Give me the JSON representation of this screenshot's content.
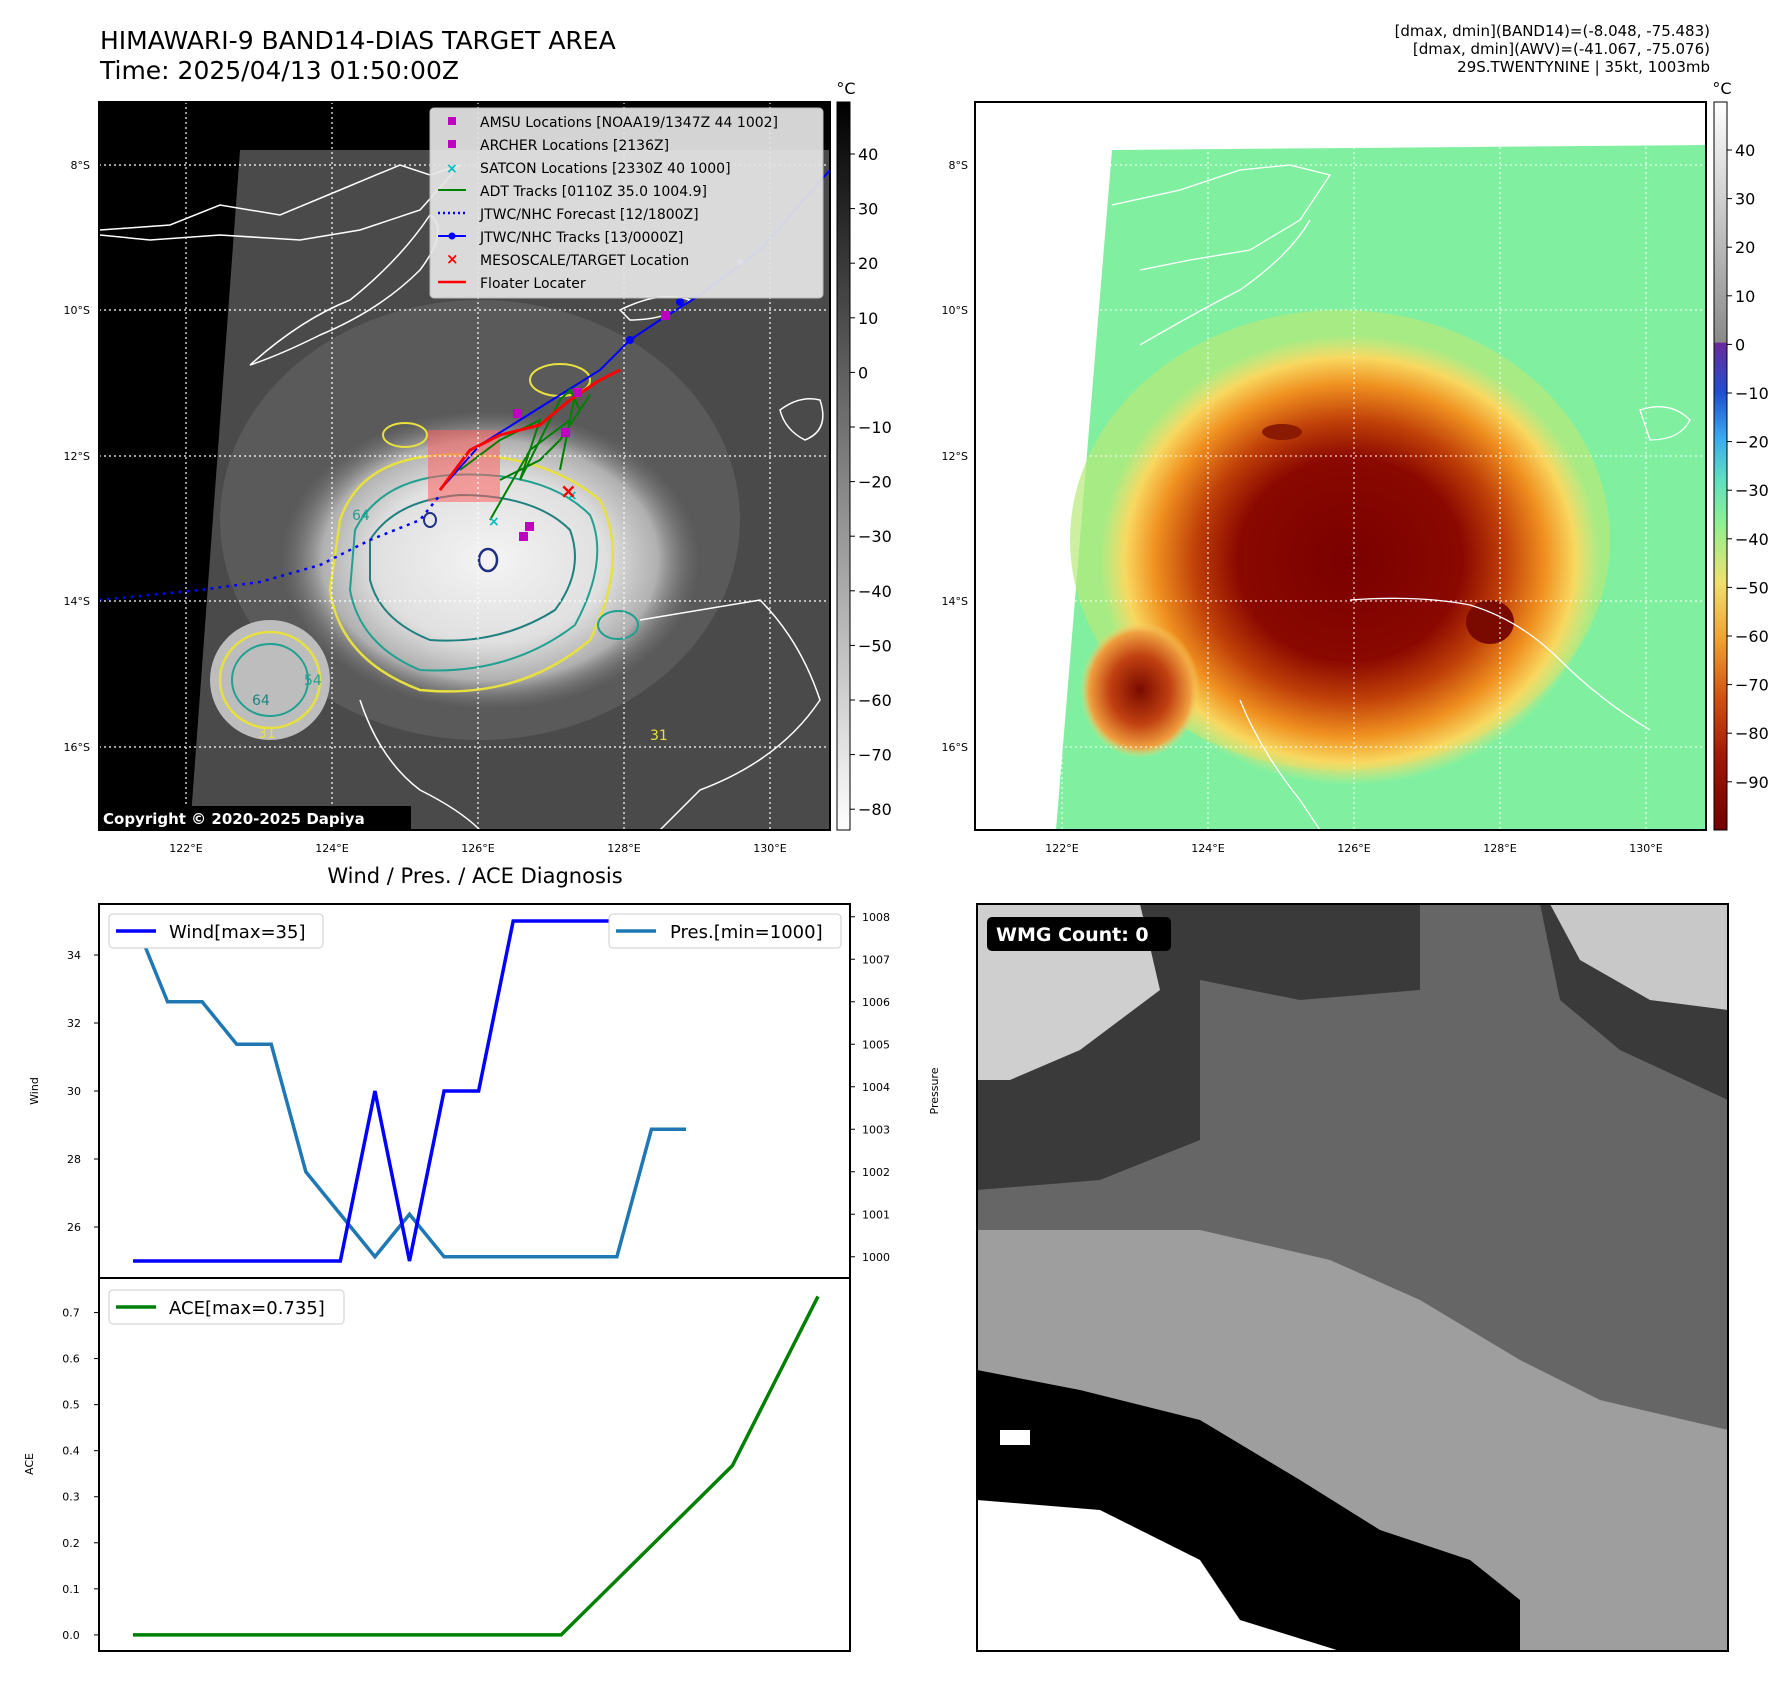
{
  "header": {
    "title_line1": "HIMAWARI-9 BAND14-DIAS TARGET AREA",
    "title_line2": "Time: 2025/04/13 01:50:00Z"
  },
  "info": {
    "line1": "[dmax, dmin](BAND14)=(-8.048, -75.483)",
    "line2": "[dmax, dmin](AWV)=(-41.067, -75.076)",
    "line3": "29S.TWENTYNINE | 35kt, 1003mb"
  },
  "map": {
    "lon_ticks": [
      "122°E",
      "124°E",
      "126°E",
      "128°E",
      "130°E"
    ],
    "lat_ticks": [
      "8°S",
      "10°S",
      "12°S",
      "14°S",
      "16°S"
    ],
    "copyright": "Copyright © 2020-2025 Dapiya",
    "contour_labels": [
      "64",
      "64",
      "31",
      "31",
      "54"
    ],
    "legend": [
      {
        "label": "AMSU Locations [NOAA19/1347Z 44 1002]",
        "color": "#c000c0",
        "marker": "square"
      },
      {
        "label": "ARCHER Locations [2136Z]",
        "color": "#c000c0",
        "marker": "square"
      },
      {
        "label": "SATCON Locations [2330Z 40 1000]",
        "color": "#00c0c0",
        "marker": "x"
      },
      {
        "label": "ADT Tracks [0110Z 35.0 1004.9]",
        "color": "#008000",
        "marker": "line"
      },
      {
        "label": "JTWC/NHC Forecast [12/1800Z]",
        "color": "#0000ff",
        "marker": "dotted"
      },
      {
        "label": "JTWC/NHC Tracks [13/0000Z]",
        "color": "#0000ff",
        "marker": "line-dot"
      },
      {
        "label": "MESOSCALE/TARGET Location",
        "color": "#ff0000",
        "marker": "x"
      },
      {
        "label": "Floater Locater",
        "color": "#ff0000",
        "marker": "line"
      }
    ]
  },
  "colorbar_gray": {
    "unit": "°C",
    "ticks": [
      "40",
      "30",
      "20",
      "10",
      "0",
      "−10",
      "−20",
      "−30",
      "−40",
      "−50",
      "−60",
      "−70",
      "−80"
    ]
  },
  "colorbar_color": {
    "unit": "°C",
    "ticks": [
      "40",
      "30",
      "20",
      "10",
      "0",
      "−10",
      "−20",
      "−30",
      "−40",
      "−50",
      "−60",
      "−70",
      "−80",
      "−90"
    ]
  },
  "diagnosis": {
    "title": "Wind / Pres. / ACE Diagnosis",
    "wind_label": "Wind",
    "pressure_label": "Pressure",
    "ace_label": "ACE",
    "wind_legend": "Wind[max=35]",
    "pres_legend": "Pres.[min=1000]",
    "ace_legend": "ACE[max=0.735]"
  },
  "wmg": {
    "label": "WMG Count: 0"
  },
  "chart_data": [
    {
      "type": "line",
      "x": [
        0,
        1,
        2,
        3,
        4,
        5,
        6,
        7,
        8,
        9,
        10,
        11,
        12,
        13,
        14,
        15,
        16
      ],
      "series": [
        {
          "name": "Wind[max=35]",
          "axis": "left",
          "color": "#0000ff",
          "values": [
            25,
            25,
            25,
            25,
            25,
            25,
            25,
            30,
            25,
            30,
            30,
            35,
            35,
            35,
            35,
            35,
            35
          ]
        },
        {
          "name": "Pres.[min=1000]",
          "axis": "right",
          "color": "#1f77b4",
          "values": [
            1008,
            1006,
            1006,
            1005,
            1005,
            1002,
            1001,
            1000,
            1001,
            1000,
            1000,
            1000,
            1000,
            1000,
            1000,
            1003,
            1003
          ]
        }
      ],
      "ylabel": "Wind",
      "ylabel_right": "Pressure",
      "ylim": [
        24.5,
        35.5
      ],
      "ylim_right": [
        999.5,
        1008.3
      ],
      "yticks": [
        26,
        28,
        30,
        32,
        34
      ],
      "yticks_right": [
        1000,
        1001,
        1002,
        1003,
        1004,
        1005,
        1006,
        1007,
        1008
      ],
      "legend": [
        "top-left",
        "top-right"
      ]
    },
    {
      "type": "line",
      "x": [
        0,
        1,
        2,
        3,
        4,
        5,
        6,
        7,
        8,
        9,
        10,
        11,
        12,
        13,
        14,
        15,
        16
      ],
      "series": [
        {
          "name": "ACE[max=0.735]",
          "color": "#008000",
          "values": [
            0,
            0,
            0,
            0,
            0,
            0,
            0,
            0,
            0,
            0,
            0,
            0.0919,
            0.1838,
            0.2756,
            0.3675,
            0.5513,
            0.735
          ]
        }
      ],
      "ylabel": "ACE",
      "ylim": [
        -0.035,
        0.775
      ],
      "yticks": [
        0.0,
        0.1,
        0.2,
        0.3,
        0.4,
        0.5,
        0.6,
        0.7
      ],
      "legend": "top-left"
    }
  ]
}
